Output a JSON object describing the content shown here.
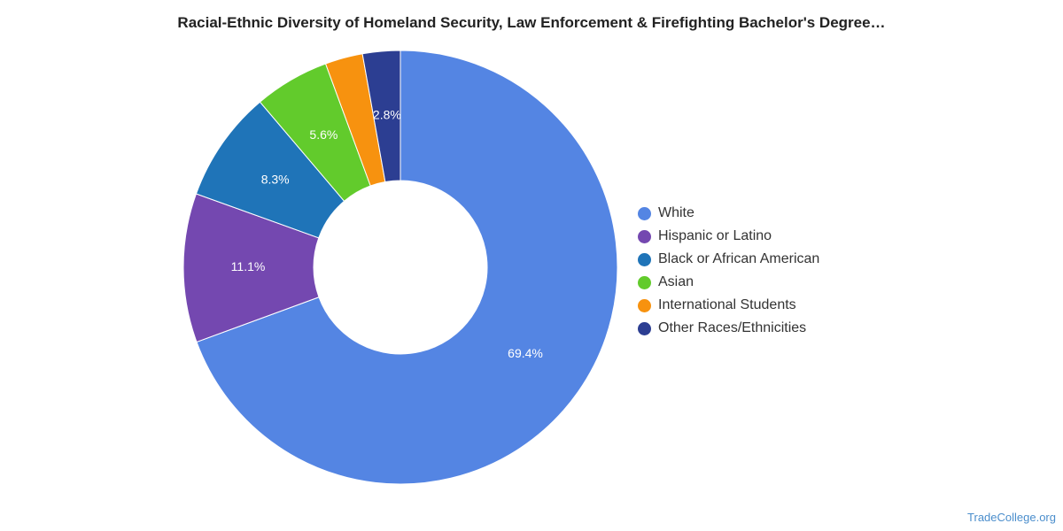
{
  "chart_data": {
    "type": "pie",
    "title": "Racial-Ethnic Diversity of Homeland Security, Law Enforcement & Firefighting Bachelor's Degree…",
    "donut": true,
    "legend_position": "right",
    "series": [
      {
        "name": "White",
        "value": 69.4,
        "label": "69.4%",
        "color": "#5485e3"
      },
      {
        "name": "Hispanic or Latino",
        "value": 11.1,
        "label": "11.1%",
        "color": "#7448b0"
      },
      {
        "name": "Black or African American",
        "value": 8.3,
        "label": "8.3%",
        "color": "#1f74b8"
      },
      {
        "name": "Asian",
        "value": 5.6,
        "label": "5.6%",
        "color": "#62cb2c"
      },
      {
        "name": "International Students",
        "value": 2.8,
        "label": "",
        "color": "#f7920f"
      },
      {
        "name": "Other Races/Ethnicities",
        "value": 2.8,
        "label": "2.8%",
        "color": "#2c3e92"
      }
    ]
  },
  "source": "TradeCollege.org"
}
